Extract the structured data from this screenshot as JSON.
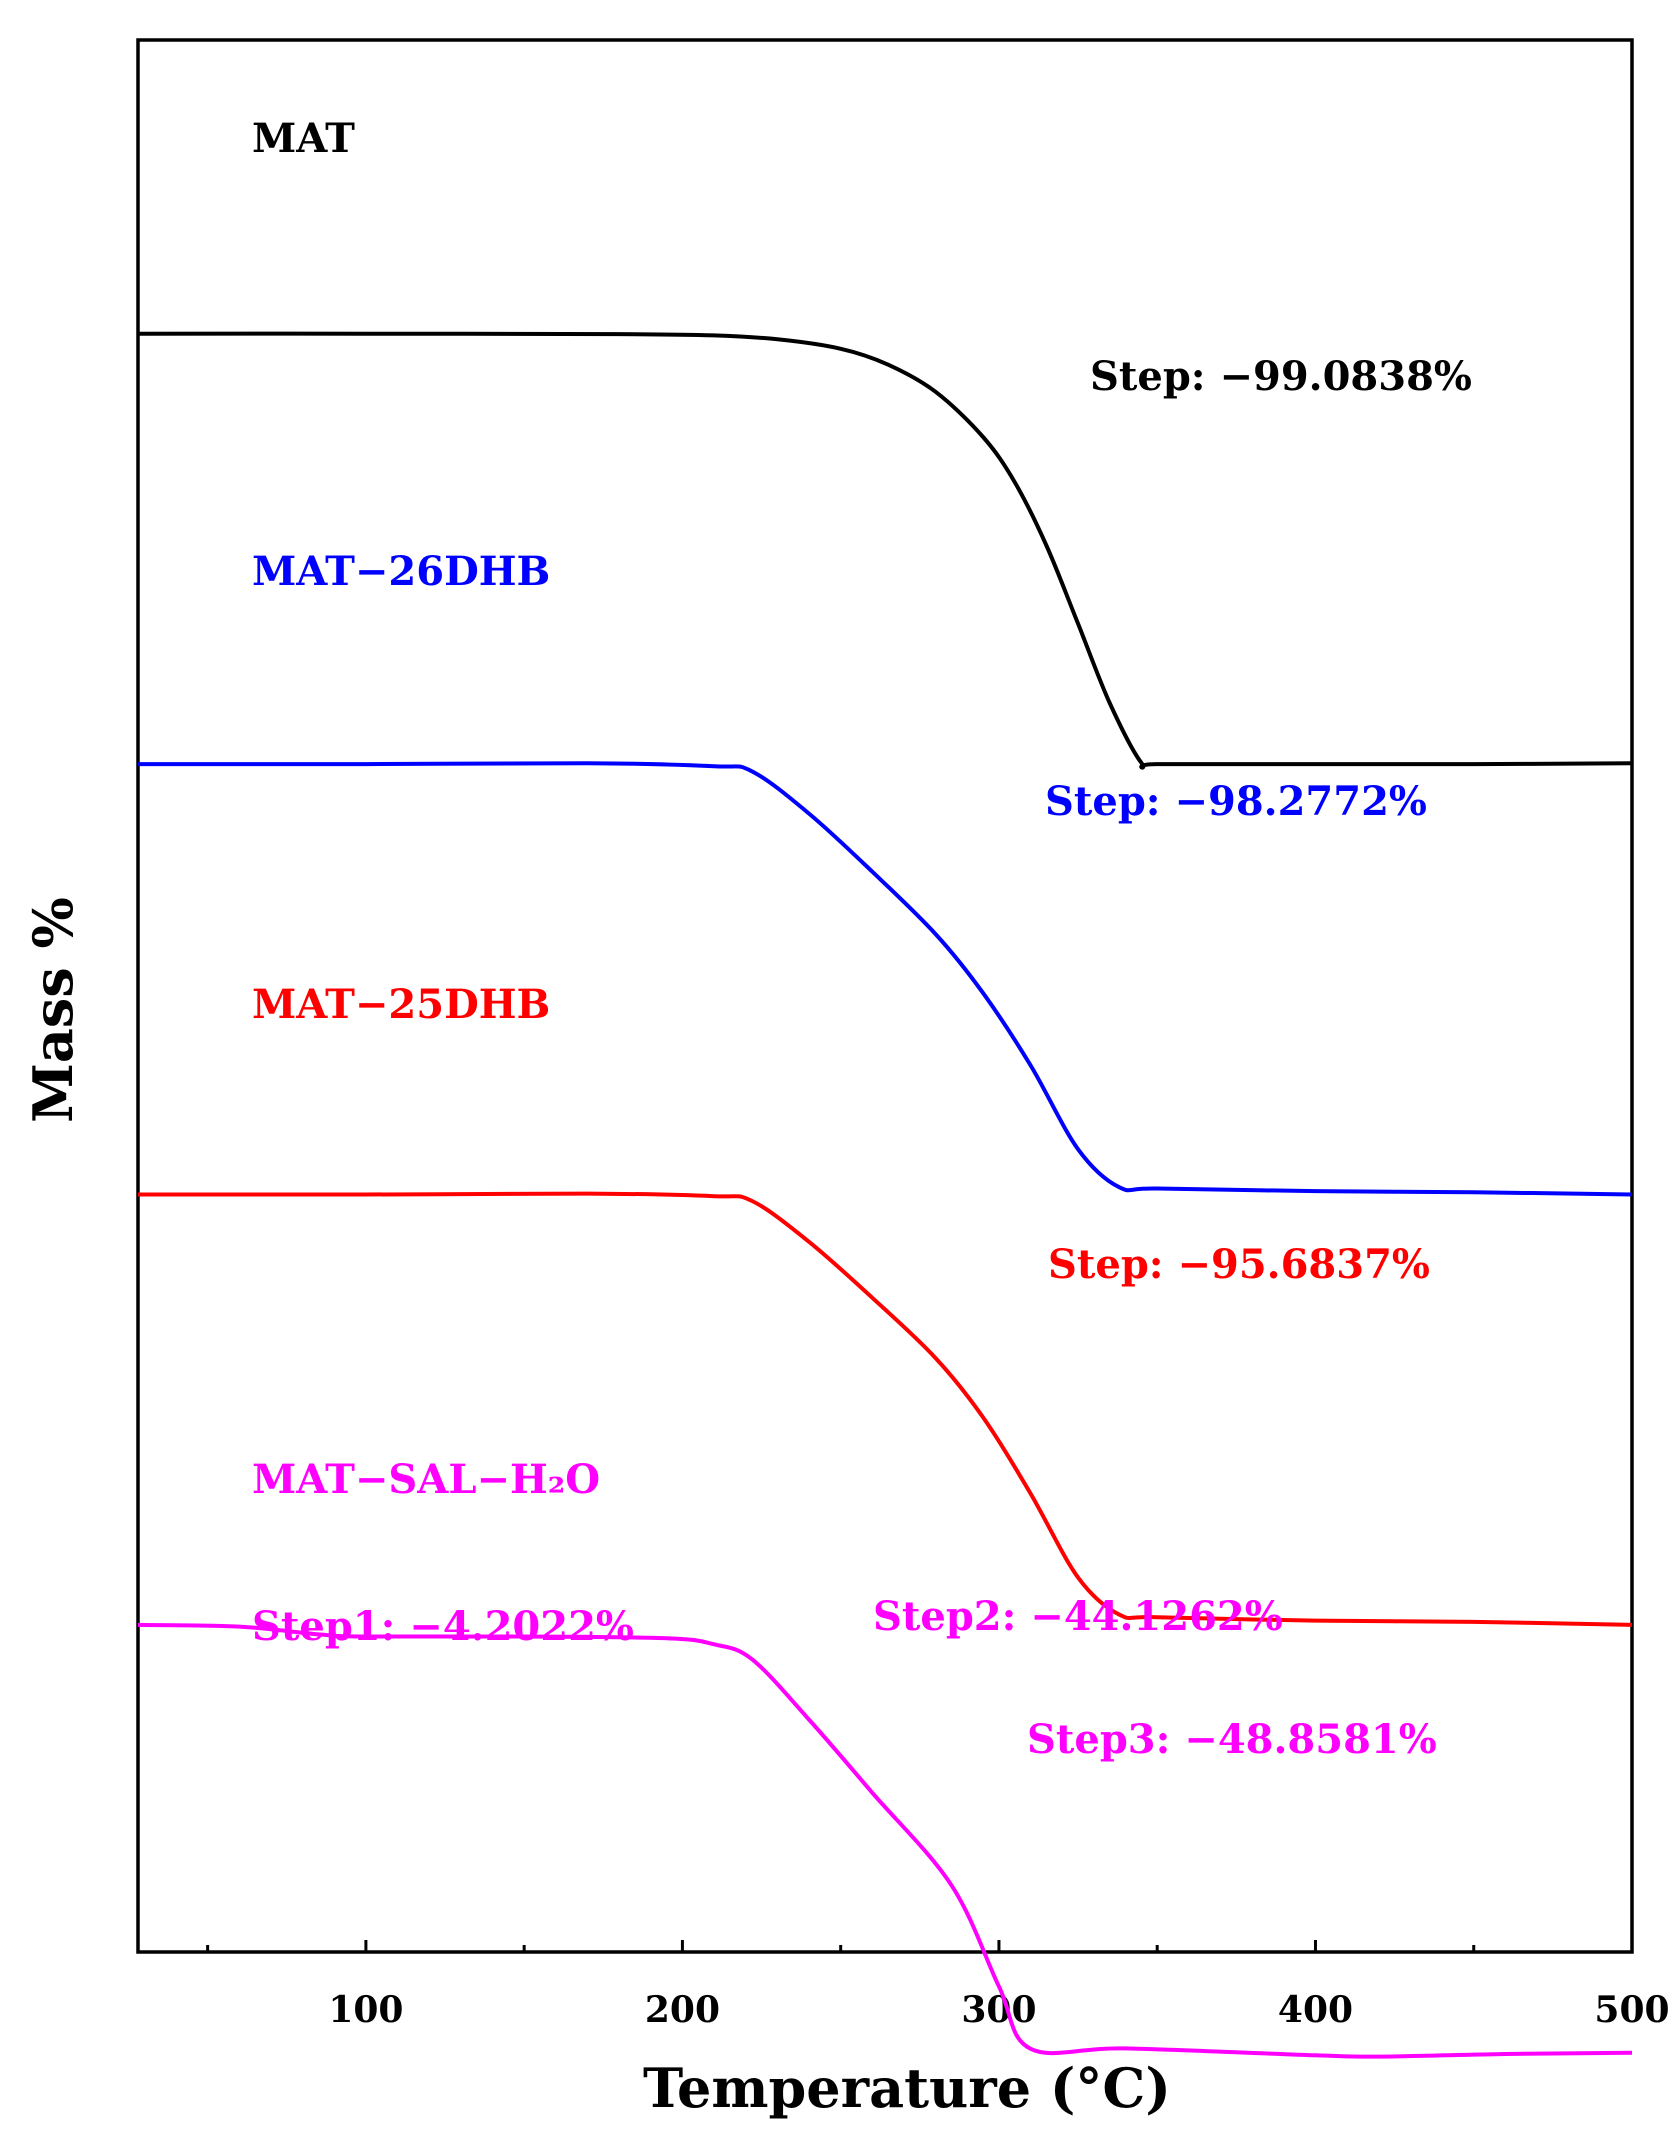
{
  "chart_data": {
    "type": "line",
    "title": "",
    "xlabel": "Temperature (°C)",
    "ylabel": "Mass  %",
    "xlim": [
      28,
      500
    ],
    "xticks": [
      100,
      200,
      300,
      400,
      500
    ],
    "xtick_labels": [
      "100",
      "200",
      "300",
      "400",
      "500"
    ],
    "yticks_shown": false,
    "grid": false,
    "legend": "none (inline labels)",
    "series": [
      {
        "name": "MAT",
        "color": "#000000",
        "offset": 300,
        "x": [
          28,
          100,
          180,
          210,
          230,
          250,
          265,
          280,
          295,
          305,
          315,
          325,
          335,
          345,
          350,
          400,
          450,
          500
        ],
        "y": [
          100.0,
          100.0,
          99.9,
          99.6,
          98.7,
          96.5,
          92.8,
          86.5,
          76.0,
          65.5,
          50.8,
          32.6,
          14.2,
          0.3,
          0.0,
          0.0,
          0.0,
          0.2
        ],
        "annotations": [
          "Step: −99.0838%"
        ]
      },
      {
        "name": "MAT−26DHB",
        "color": "#0000ff",
        "offset": 200,
        "x": [
          28,
          100,
          170,
          210,
          222,
          240,
          260,
          280,
          295,
          310,
          325,
          338,
          350,
          400,
          450,
          500
        ],
        "y": [
          100.0,
          100.0,
          100.2,
          99.5,
          98.3,
          88.5,
          75.0,
          60.5,
          46.8,
          30.0,
          10.5,
          1.7,
          1.4,
          0.8,
          0.5,
          0.0
        ],
        "annotations": [
          "Step: −98.2772%"
        ]
      },
      {
        "name": "MAT−25DHB",
        "color": "#ff0000",
        "offset": 100,
        "x": [
          28,
          100,
          170,
          210,
          222,
          240,
          260,
          280,
          295,
          310,
          325,
          338,
          350,
          400,
          450,
          500
        ],
        "y": [
          100.0,
          100.0,
          100.2,
          99.6,
          98.5,
          89.0,
          76.0,
          62.0,
          48.2,
          30.5,
          11.0,
          2.4,
          1.8,
          1.0,
          0.7,
          0.0
        ],
        "annotations": [
          "Step: −95.6837%"
        ]
      },
      {
        "name": "MAT−SAL−H₂O",
        "color": "#ff00ff",
        "offset": 0,
        "x": [
          28,
          60,
          85,
          100,
          150,
          195,
          210,
          222,
          240,
          260,
          285,
          300,
          310,
          340,
          400,
          420,
          460,
          500
        ],
        "y": [
          100.0,
          99.6,
          97.8,
          97.3,
          97.3,
          96.9,
          95.5,
          92.0,
          78.0,
          61.0,
          39.5,
          16.0,
          1.5,
          1.6,
          0.0,
          -0.3,
          0.3,
          0.6
        ],
        "annotations": [
          "Step1:  −4.2022%",
          "Step2:  −44.1262%",
          "Step3:  −48.8581%"
        ]
      }
    ]
  }
}
